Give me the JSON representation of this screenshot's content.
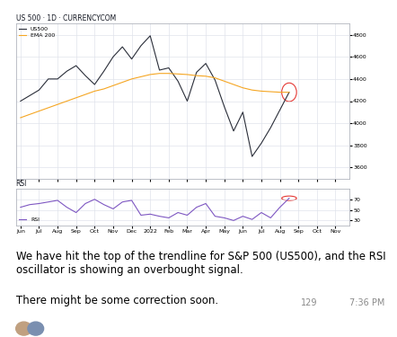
{
  "chart_data": [
    {
      "type": "line",
      "title": "US 500 · 1D · CURRENCYCOM",
      "categories": [
        "Jun",
        null,
        "Jul",
        null,
        "Aug",
        null,
        "Sep",
        null,
        "Oct",
        null,
        "Nov",
        null,
        "Dec",
        null,
        "2022",
        null,
        "Feb",
        null,
        "Mar",
        null,
        "Apr",
        null,
        "May",
        null,
        "Jun",
        null,
        "Jul",
        null,
        "Aug",
        null,
        "Sep",
        null,
        "Oct",
        null,
        "Nov",
        null
      ],
      "series": [
        {
          "name": "US500",
          "color": "#2a2e39",
          "values": [
            4200,
            4250,
            4300,
            4400,
            4400,
            4470,
            4520,
            4430,
            4350,
            4470,
            4600,
            4690,
            4580,
            4700,
            4790,
            4480,
            4500,
            4380,
            4200,
            4460,
            4540,
            4390,
            4150,
            3930,
            4100,
            3700,
            3820,
            3960,
            4120,
            4280,
            null,
            null,
            null,
            null,
            null,
            null
          ]
        },
        {
          "name": "EMA 200",
          "color": "#f5a623",
          "values": [
            4050,
            4080,
            4110,
            4140,
            4170,
            4200,
            4230,
            4260,
            4290,
            4310,
            4340,
            4370,
            4400,
            4420,
            4440,
            4450,
            4450,
            4445,
            4440,
            4430,
            4425,
            4410,
            4380,
            4350,
            4320,
            4300,
            4290,
            4285,
            4280,
            4280,
            null,
            null,
            null,
            null,
            null,
            null
          ]
        }
      ],
      "ylim": [
        3500,
        4900
      ],
      "yticks": [
        3600,
        3800,
        4000,
        4200,
        4400,
        4600,
        4800
      ],
      "grid": true,
      "legend": "upper left",
      "tick_labels": "y"
    },
    {
      "type": "line",
      "title": "RSI",
      "categories": [
        "Jun",
        null,
        "Jul",
        null,
        "Aug",
        null,
        "Sep",
        null,
        "Oct",
        null,
        "Nov",
        null,
        "Dec",
        null,
        "2022",
        null,
        "Feb",
        null,
        "Mar",
        null,
        "Apr",
        null,
        "May",
        null,
        "Jun",
        null,
        "Jul",
        null,
        "Aug",
        null,
        "Sep",
        null,
        "Oct",
        null,
        "Nov",
        null
      ],
      "series": [
        {
          "name": "RSI",
          "color": "#7e57c2",
          "values": [
            55,
            60,
            62,
            65,
            68,
            55,
            45,
            62,
            70,
            60,
            52,
            65,
            68,
            40,
            42,
            38,
            35,
            45,
            40,
            55,
            62,
            38,
            35,
            30,
            38,
            32,
            45,
            35,
            55,
            72,
            null,
            null,
            null,
            null,
            null,
            null
          ]
        }
      ],
      "ylim": [
        20,
        90
      ],
      "yticks": [
        30,
        50,
        70
      ],
      "grid": true,
      "legend": "lower left"
    }
  ],
  "message": {
    "paragraphs": [
      "We have hit the top of the trendline for S&P 500 (US500), and the RSI oscillator is showing an overbought signal.",
      "There might be some correction soon."
    ],
    "views": 129,
    "time": "7:36 PM"
  }
}
